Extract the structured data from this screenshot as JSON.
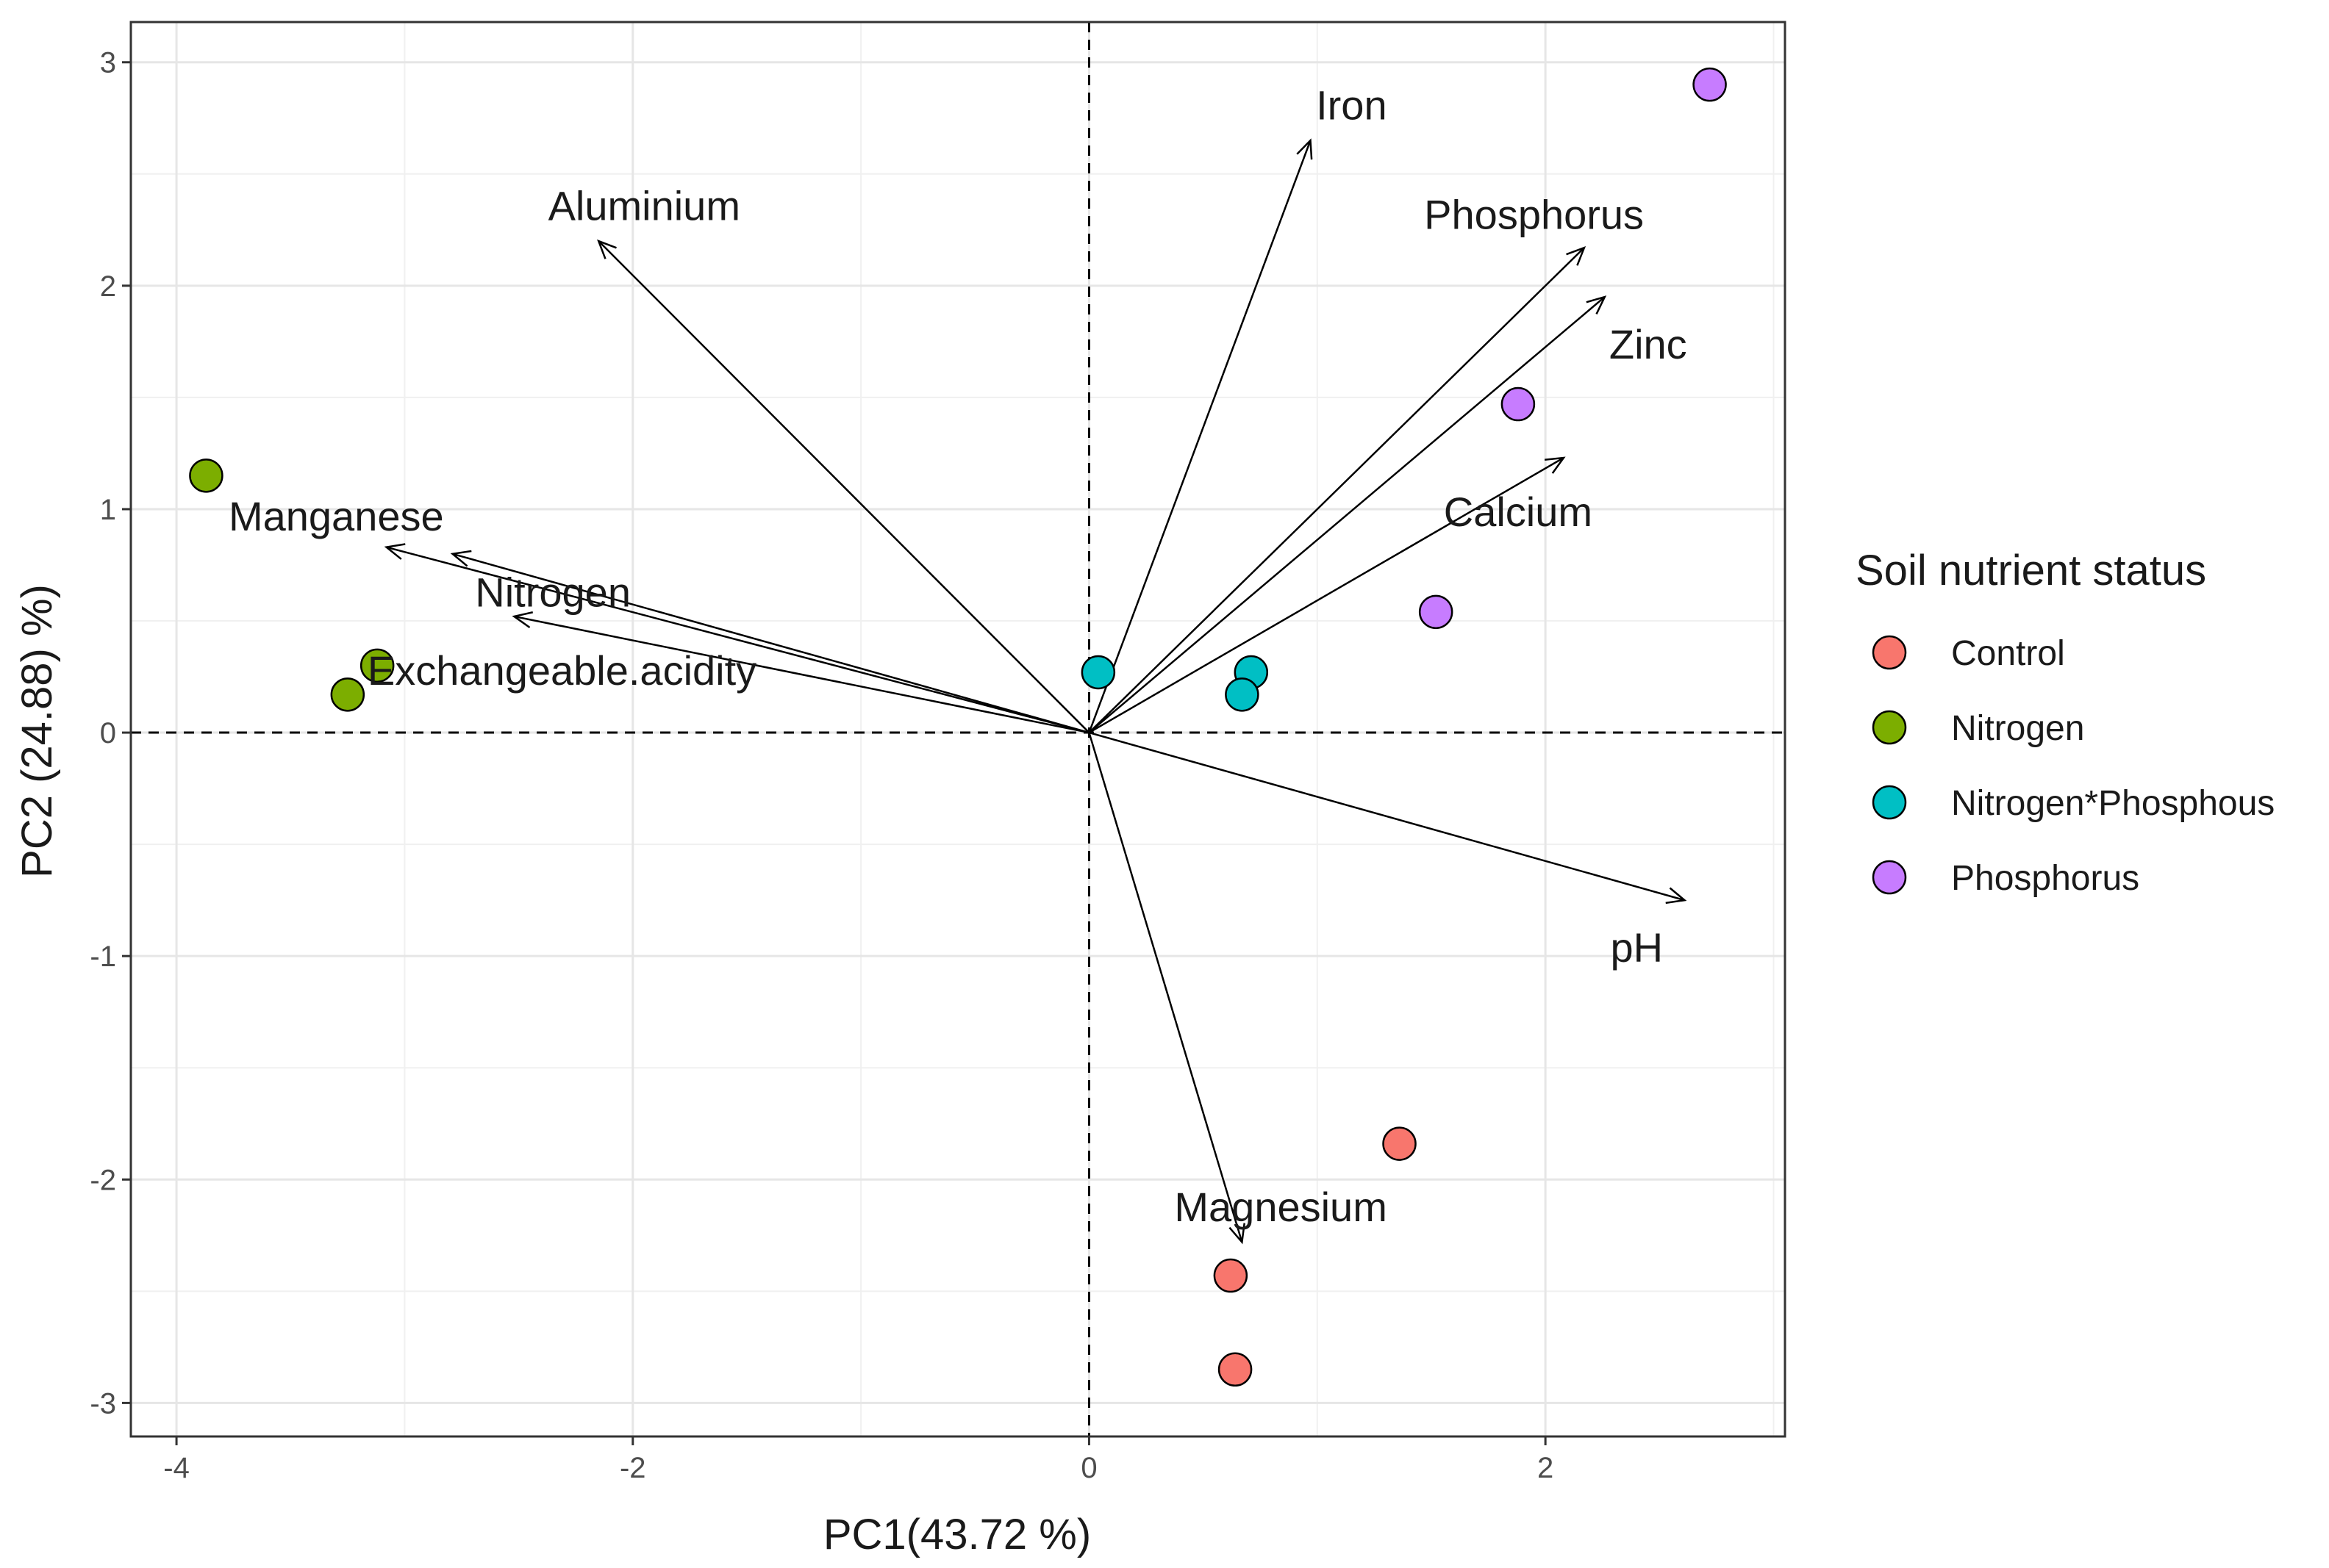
{
  "chart_data": {
    "type": "scatter",
    "subtype": "pca-biplot",
    "title": "",
    "xlabel": "PC1(43.72 %)",
    "ylabel": "PC2 (24.88) %)",
    "xlim": [
      -4.2,
      3.05
    ],
    "ylim": [
      -3.15,
      3.18
    ],
    "xticks": [
      -4,
      -2,
      0,
      2
    ],
    "yticks": [
      -3,
      -2,
      -1,
      0,
      1,
      2,
      3
    ],
    "xtick_labels": [
      "-4",
      "-2",
      "0",
      "2"
    ],
    "ytick_labels": [
      "-3",
      "-2",
      "-1",
      "0",
      "1",
      "2",
      "3"
    ],
    "grid": true,
    "reference_lines": {
      "x": 0,
      "y": 0,
      "style": "dashed"
    },
    "legend": {
      "title": "Soil nutrient status",
      "position": "right",
      "entries": [
        {
          "name": "Control",
          "color": "#F8766D"
        },
        {
          "name": "Nitrogen",
          "color": "#7CAE00"
        },
        {
          "name": "Nitrogen*Phosphous",
          "color": "#00BFC4"
        },
        {
          "name": "Phosphorus",
          "color": "#C77CFF"
        }
      ]
    },
    "series": [
      {
        "name": "Control",
        "color": "#F8766D",
        "points": [
          {
            "x": 0.62,
            "y": -2.43
          },
          {
            "x": 0.64,
            "y": -2.85
          },
          {
            "x": 1.36,
            "y": -1.84
          }
        ]
      },
      {
        "name": "Nitrogen",
        "color": "#7CAE00",
        "points": [
          {
            "x": -3.87,
            "y": 1.15
          },
          {
            "x": -3.12,
            "y": 0.3
          },
          {
            "x": -3.25,
            "y": 0.17
          }
        ]
      },
      {
        "name": "Nitrogen*Phosphous",
        "color": "#00BFC4",
        "points": [
          {
            "x": 0.04,
            "y": 0.27
          },
          {
            "x": 0.71,
            "y": 0.27
          },
          {
            "x": 0.67,
            "y": 0.17
          }
        ]
      },
      {
        "name": "Phosphorus",
        "color": "#C77CFF",
        "points": [
          {
            "x": 2.72,
            "y": 2.9
          },
          {
            "x": 1.88,
            "y": 1.47
          },
          {
            "x": 1.52,
            "y": 0.54
          }
        ]
      }
    ],
    "loadings": [
      {
        "name": "Iron",
        "x": 0.97,
        "y": 2.65,
        "label_x": 1.15,
        "label_y": 2.81
      },
      {
        "name": "Aluminium",
        "x": -2.15,
        "y": 2.2,
        "label_x": -1.95,
        "label_y": 2.36
      },
      {
        "name": "Phosphorus",
        "x": 2.17,
        "y": 2.17,
        "label_x": 1.95,
        "label_y": 2.32
      },
      {
        "name": "Zinc",
        "x": 2.26,
        "y": 1.95,
        "label_x": 2.45,
        "label_y": 1.74
      },
      {
        "name": "Calcium",
        "x": 2.08,
        "y": 1.23,
        "label_x": 1.88,
        "label_y": 0.99
      },
      {
        "name": "Manganese",
        "x": -3.08,
        "y": 0.83,
        "label_x": -3.3,
        "label_y": 0.97
      },
      {
        "name": "Nitrogen",
        "x": -2.79,
        "y": 0.8,
        "label_x": -2.35,
        "label_y": 0.63
      },
      {
        "name": "Exchangeable.acidity",
        "x": -2.52,
        "y": 0.52,
        "label_x": -2.31,
        "label_y": 0.28
      },
      {
        "name": "pH",
        "x": 2.61,
        "y": -0.75,
        "label_x": 2.4,
        "label_y": -0.96
      },
      {
        "name": "Magnesium",
        "x": 0.67,
        "y": -2.28,
        "label_x": 0.84,
        "label_y": -2.12
      }
    ]
  }
}
